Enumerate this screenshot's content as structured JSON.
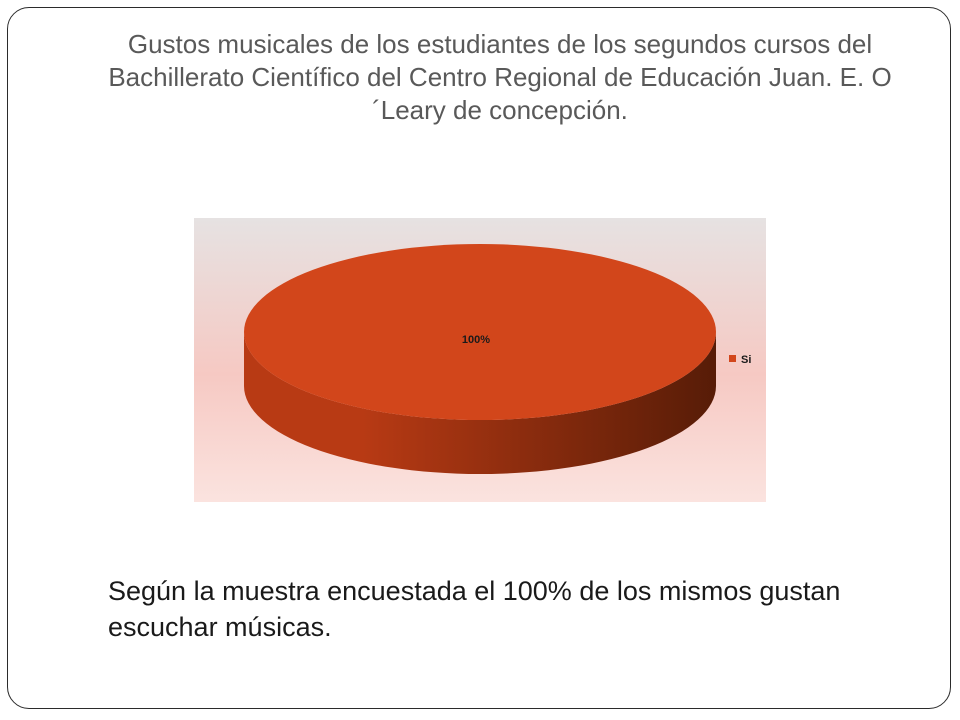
{
  "slide": {
    "title": "Gustos musicales de los estudiantes de los segundos cursos del Bachillerato Científico del Centro Regional de Educación Juan. E. O´Leary de concepción.",
    "caption": "Según la muestra encuestada el 100% de los mismos gustan escuchar músicas."
  },
  "colors": {
    "slice": "#d2461b",
    "slice_side_light": "#b83a14",
    "slice_side_dark": "#571c07",
    "plot_bg_top": "#e6e2e2",
    "plot_bg_mid": "#f6c9c3",
    "plot_bg_bottom": "#fbe3df",
    "label_text": "#1a1a1a"
  },
  "chart_data": {
    "type": "pie",
    "style": "3d",
    "categories": [
      "Si"
    ],
    "values": [
      100
    ],
    "data_labels": [
      "100%"
    ],
    "legend": [
      "Si"
    ],
    "legend_position": "right"
  }
}
